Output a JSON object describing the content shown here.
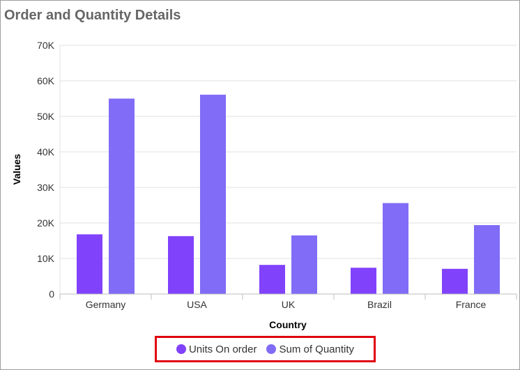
{
  "chart_data": {
    "type": "bar",
    "title": "Order and Quantity Details",
    "xlabel": "Country",
    "ylabel": "Values",
    "categories": [
      "Germany",
      "USA",
      "UK",
      "Brazil",
      "France"
    ],
    "series": [
      {
        "name": "Units On order",
        "values": [
          16800,
          16300,
          8200,
          7400,
          7100
        ],
        "color": "#8142fc"
      },
      {
        "name": "Sum of Quantity",
        "values": [
          55000,
          56100,
          16500,
          25600,
          19400
        ],
        "color": "#806cf6"
      }
    ],
    "ylim": [
      0,
      70000
    ],
    "yticks": [
      0,
      10000,
      20000,
      30000,
      40000,
      50000,
      60000,
      70000
    ],
    "ytick_labels": [
      "0",
      "10K",
      "20K",
      "30K",
      "40K",
      "50K",
      "60K",
      "70K"
    ],
    "grid": true,
    "legend_position": "bottom"
  }
}
